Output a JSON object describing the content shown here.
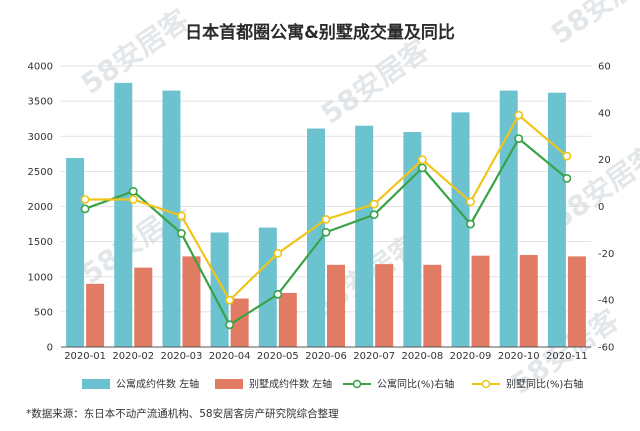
{
  "chart_data": {
    "type": "bar",
    "title": "日本首都圈公寓&别墅成交量及同比",
    "categories": [
      "2020-01",
      "2020-02",
      "2020-03",
      "2020-04",
      "2020-05",
      "2020-06",
      "2020-07",
      "2020-08",
      "2020-09",
      "2020-10",
      "2020-11"
    ],
    "left_axis": {
      "ylim": [
        0,
        4000
      ],
      "ticks": [
        0,
        500,
        1000,
        1500,
        2000,
        2500,
        3000,
        3500,
        4000
      ]
    },
    "right_axis": {
      "ylim": [
        -60,
        60
      ],
      "ticks": [
        -60,
        -40,
        -20,
        0,
        20,
        40,
        60
      ]
    },
    "series": [
      {
        "name": "公寓成约件数 左轴",
        "type": "bar",
        "axis": "left",
        "color": "#6cc3cf",
        "values": [
          2690,
          3760,
          3650,
          1630,
          1700,
          3110,
          3150,
          3060,
          3340,
          3650,
          3620
        ]
      },
      {
        "name": "别墅成约件数 左轴",
        "type": "bar",
        "axis": "left",
        "color": "#e17b63",
        "values": [
          900,
          1130,
          1290,
          690,
          770,
          1170,
          1180,
          1170,
          1300,
          1310,
          1290
        ]
      },
      {
        "name": "公寓同比(%)右轴",
        "type": "line",
        "axis": "right",
        "color": "#3aa247",
        "values": [
          -1,
          6.5,
          -11.5,
          -50.5,
          -37.5,
          -11,
          -3.5,
          16.5,
          -7.5,
          29,
          12
        ]
      },
      {
        "name": "别墅同比(%)右轴",
        "type": "line",
        "axis": "right",
        "color": "#f0c419",
        "values": [
          3,
          3,
          -4,
          -40,
          -20,
          -5.5,
          1,
          20,
          2,
          39,
          21.5
        ]
      }
    ],
    "grid": true,
    "legend": "bottom"
  },
  "watermark": {
    "text_cn": "安居客",
    "text_num": "58"
  },
  "source_note": "*数据来源：东日本不动产流通机构、58安居客房产研究院综合整理"
}
